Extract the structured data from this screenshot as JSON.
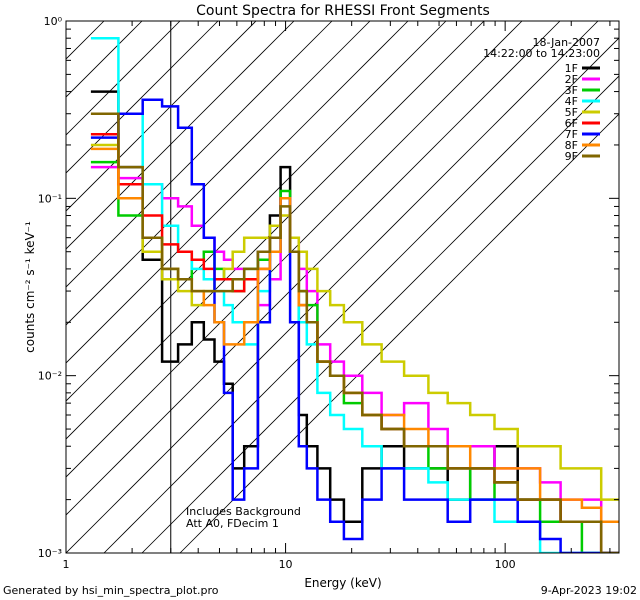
{
  "chart_data": {
    "type": "line",
    "title": "Count Spectra for RHESSI Front Segments",
    "xlabel": "Energy (keV)",
    "ylabel": "counts cm⁻² s⁻¹ keV⁻¹",
    "xscale": "log",
    "yscale": "log",
    "xlim": [
      1,
      330
    ],
    "ylim": [
      0.001,
      1.0
    ],
    "x_ticks": [
      {
        "value": 1,
        "label": "1"
      },
      {
        "value": 10,
        "label": "10"
      },
      {
        "value": 100,
        "label": "100"
      }
    ],
    "y_ticks": [
      {
        "value": 1,
        "label": "10⁰"
      },
      {
        "value": 0.1,
        "label": "10⁻¹"
      },
      {
        "value": 0.01,
        "label": "10⁻²"
      },
      {
        "value": 0.001,
        "label": "10⁻³"
      }
    ],
    "date": "18-Jan-2007",
    "time_range": "14:22:00 to 14:23:00",
    "shaded_region_keV": [
      1,
      3
    ],
    "annotation_lines": [
      "Includes Background",
      "Att A0, FDecim 1"
    ],
    "series": [
      {
        "name": "1F",
        "color": "#000000",
        "x": [
          1.5,
          2.0,
          2.5,
          3.0,
          3.5,
          4.0,
          4.5,
          5.0,
          5.5,
          6.0,
          7.0,
          8.0,
          9.0,
          10.0,
          11.0,
          12.0,
          13.0,
          15.0,
          17.0,
          20.0,
          25.0,
          30.0,
          40.0,
          50.0,
          60.0,
          80.0,
          100.0,
          130.0,
          160.0,
          200.0,
          250.0,
          300.0
        ],
        "values": [
          0.4,
          0.15,
          0.045,
          0.012,
          0.015,
          0.02,
          0.016,
          0.012,
          0.009,
          0.003,
          0.004,
          0.05,
          0.08,
          0.15,
          0.05,
          0.006,
          0.004,
          0.003,
          0.002,
          0.0015,
          0.003,
          0.004,
          0.003,
          0.003,
          0.002,
          0.003,
          0.004,
          0.002,
          0.002,
          0.0015,
          0.0015,
          0.001
        ]
      },
      {
        "name": "2F",
        "color": "#ff00ff",
        "x": [
          1.5,
          2.0,
          2.5,
          3.0,
          3.5,
          4.0,
          4.5,
          5.0,
          5.5,
          6.0,
          7.0,
          8.0,
          9.0,
          10.0,
          11.0,
          12.0,
          13.0,
          15.0,
          17.0,
          20.0,
          25.0,
          30.0,
          40.0,
          50.0,
          60.0,
          80.0,
          100.0,
          130.0,
          160.0,
          200.0,
          250.0,
          300.0
        ],
        "values": [
          0.15,
          0.13,
          0.12,
          0.1,
          0.09,
          0.07,
          0.06,
          0.05,
          0.045,
          0.04,
          0.035,
          0.025,
          0.035,
          0.1,
          0.06,
          0.04,
          0.03,
          0.015,
          0.012,
          0.01,
          0.008,
          0.006,
          0.007,
          0.005,
          0.004,
          0.004,
          0.003,
          0.003,
          0.0025,
          0.002,
          0.002,
          0.0015
        ]
      },
      {
        "name": "3F",
        "color": "#00cc00",
        "x": [
          1.5,
          2.0,
          2.5,
          3.0,
          3.5,
          4.0,
          4.5,
          5.0,
          5.5,
          6.0,
          7.0,
          8.0,
          9.0,
          10.0,
          11.0,
          12.0,
          13.0,
          15.0,
          17.0,
          20.0,
          25.0,
          30.0,
          40.0,
          50.0,
          60.0,
          80.0,
          100.0,
          130.0,
          160.0,
          200.0,
          250.0,
          300.0
        ],
        "values": [
          0.16,
          0.08,
          0.06,
          0.04,
          0.035,
          0.045,
          0.05,
          0.04,
          0.035,
          0.03,
          0.04,
          0.045,
          0.06,
          0.11,
          0.05,
          0.03,
          0.025,
          0.012,
          0.01,
          0.007,
          0.006,
          0.005,
          0.004,
          0.003,
          0.003,
          0.002,
          0.0025,
          0.002,
          0.0015,
          0.0015,
          0.001,
          0.001
        ]
      },
      {
        "name": "4F",
        "color": "#00ffff",
        "x": [
          1.5,
          2.0,
          2.5,
          3.0,
          3.5,
          4.0,
          4.5,
          5.0,
          5.5,
          6.0,
          7.0,
          8.0,
          9.0,
          10.0,
          11.0,
          12.0,
          13.0,
          15.0,
          17.0,
          20.0,
          25.0,
          30.0,
          40.0,
          50.0,
          60.0,
          80.0,
          100.0,
          130.0,
          160.0,
          200.0,
          250.0,
          300.0
        ],
        "values": [
          0.8,
          0.3,
          0.12,
          0.07,
          0.05,
          0.04,
          0.035,
          0.03,
          0.025,
          0.02,
          0.015,
          0.03,
          0.05,
          0.1,
          0.05,
          0.02,
          0.015,
          0.008,
          0.006,
          0.005,
          0.004,
          0.003,
          0.003,
          0.0025,
          0.002,
          0.002,
          0.0015,
          0.0015,
          0.001,
          0.001,
          0.001,
          0.001
        ]
      },
      {
        "name": "5F",
        "color": "#cccc00",
        "x": [
          1.5,
          2.0,
          2.5,
          3.0,
          3.5,
          4.0,
          4.5,
          5.0,
          5.5,
          6.0,
          7.0,
          8.0,
          9.0,
          10.0,
          11.0,
          12.0,
          13.0,
          15.0,
          17.0,
          20.0,
          25.0,
          30.0,
          40.0,
          50.0,
          60.0,
          80.0,
          100.0,
          130.0,
          160.0,
          200.0,
          250.0,
          300.0
        ],
        "values": [
          0.2,
          0.1,
          0.05,
          0.035,
          0.03,
          0.025,
          0.03,
          0.035,
          0.04,
          0.05,
          0.06,
          0.06,
          0.07,
          0.08,
          0.06,
          0.05,
          0.04,
          0.03,
          0.025,
          0.02,
          0.015,
          0.012,
          0.01,
          0.008,
          0.007,
          0.006,
          0.005,
          0.004,
          0.004,
          0.003,
          0.003,
          0.002
        ]
      },
      {
        "name": "6F",
        "color": "#ff0000",
        "x": [
          1.5,
          2.0,
          2.5,
          3.0,
          3.5,
          4.0,
          4.5,
          5.0,
          5.5,
          6.0,
          7.0,
          8.0,
          9.0,
          10.0,
          11.0,
          12.0,
          13.0,
          15.0,
          17.0,
          20.0,
          25.0,
          30.0,
          40.0,
          50.0,
          60.0,
          80.0,
          100.0,
          130.0,
          160.0,
          200.0,
          250.0,
          300.0
        ],
        "values": [
          0.23,
          0.12,
          0.08,
          0.055,
          0.05,
          0.045,
          0.04,
          0.035,
          0.035,
          0.03,
          0.035,
          0.04,
          0.06,
          0.1,
          0.05,
          0.025,
          0.02,
          0.012,
          0.01,
          0.008,
          0.006,
          0.005,
          0.004,
          0.004,
          0.003,
          0.003,
          0.0025,
          0.002,
          0.002,
          0.0015,
          0.0015,
          0.001
        ]
      },
      {
        "name": "7F",
        "color": "#0000ff",
        "x": [
          1.5,
          2.0,
          2.5,
          3.0,
          3.5,
          4.0,
          4.5,
          5.0,
          5.5,
          6.0,
          7.0,
          8.0,
          9.0,
          10.0,
          11.0,
          12.0,
          13.0,
          15.0,
          17.0,
          20.0,
          25.0,
          30.0,
          40.0,
          50.0,
          60.0,
          80.0,
          100.0,
          130.0,
          160.0,
          200.0,
          250.0,
          300.0
        ],
        "values": [
          0.22,
          0.3,
          0.36,
          0.33,
          0.25,
          0.12,
          0.06,
          0.02,
          0.008,
          0.002,
          0.003,
          0.02,
          0.05,
          0.1,
          0.02,
          0.004,
          0.003,
          0.002,
          0.0015,
          0.0012,
          0.002,
          0.003,
          0.002,
          0.002,
          0.0015,
          0.002,
          0.002,
          0.0015,
          0.0012,
          0.001,
          0.001,
          0.001
        ]
      },
      {
        "name": "8F",
        "color": "#ff8800",
        "x": [
          1.5,
          2.0,
          2.5,
          3.0,
          3.5,
          4.0,
          4.5,
          5.0,
          5.5,
          6.0,
          7.0,
          8.0,
          9.0,
          10.0,
          11.0,
          12.0,
          13.0,
          15.0,
          17.0,
          20.0,
          25.0,
          30.0,
          40.0,
          50.0,
          60.0,
          80.0,
          100.0,
          130.0,
          160.0,
          200.0,
          250.0,
          300.0
        ],
        "values": [
          0.19,
          0.1,
          0.06,
          0.04,
          0.035,
          0.03,
          0.025,
          0.02,
          0.015,
          0.015,
          0.02,
          0.04,
          0.05,
          0.1,
          0.05,
          0.025,
          0.02,
          0.012,
          0.01,
          0.008,
          0.006,
          0.006,
          0.005,
          0.004,
          0.004,
          0.003,
          0.003,
          0.003,
          0.002,
          0.002,
          0.0018,
          0.0015
        ]
      },
      {
        "name": "9F",
        "color": "#806600",
        "x": [
          1.5,
          2.0,
          2.5,
          3.0,
          3.5,
          4.0,
          4.5,
          5.0,
          5.5,
          6.0,
          7.0,
          8.0,
          9.0,
          10.0,
          11.0,
          12.0,
          13.0,
          15.0,
          17.0,
          20.0,
          25.0,
          30.0,
          40.0,
          50.0,
          60.0,
          80.0,
          100.0,
          130.0,
          160.0,
          200.0,
          250.0,
          300.0
        ],
        "values": [
          0.3,
          0.15,
          0.06,
          0.04,
          0.035,
          0.03,
          0.03,
          0.03,
          0.03,
          0.035,
          0.04,
          0.05,
          0.06,
          0.09,
          0.05,
          0.03,
          0.02,
          0.012,
          0.01,
          0.008,
          0.006,
          0.005,
          0.004,
          0.004,
          0.003,
          0.003,
          0.0025,
          0.002,
          0.002,
          0.0015,
          0.0015,
          0.001
        ]
      }
    ]
  },
  "footer": {
    "left": "Generated by hsi_min_spectra_plot.pro",
    "right": "9-Apr-2023 19:02"
  }
}
